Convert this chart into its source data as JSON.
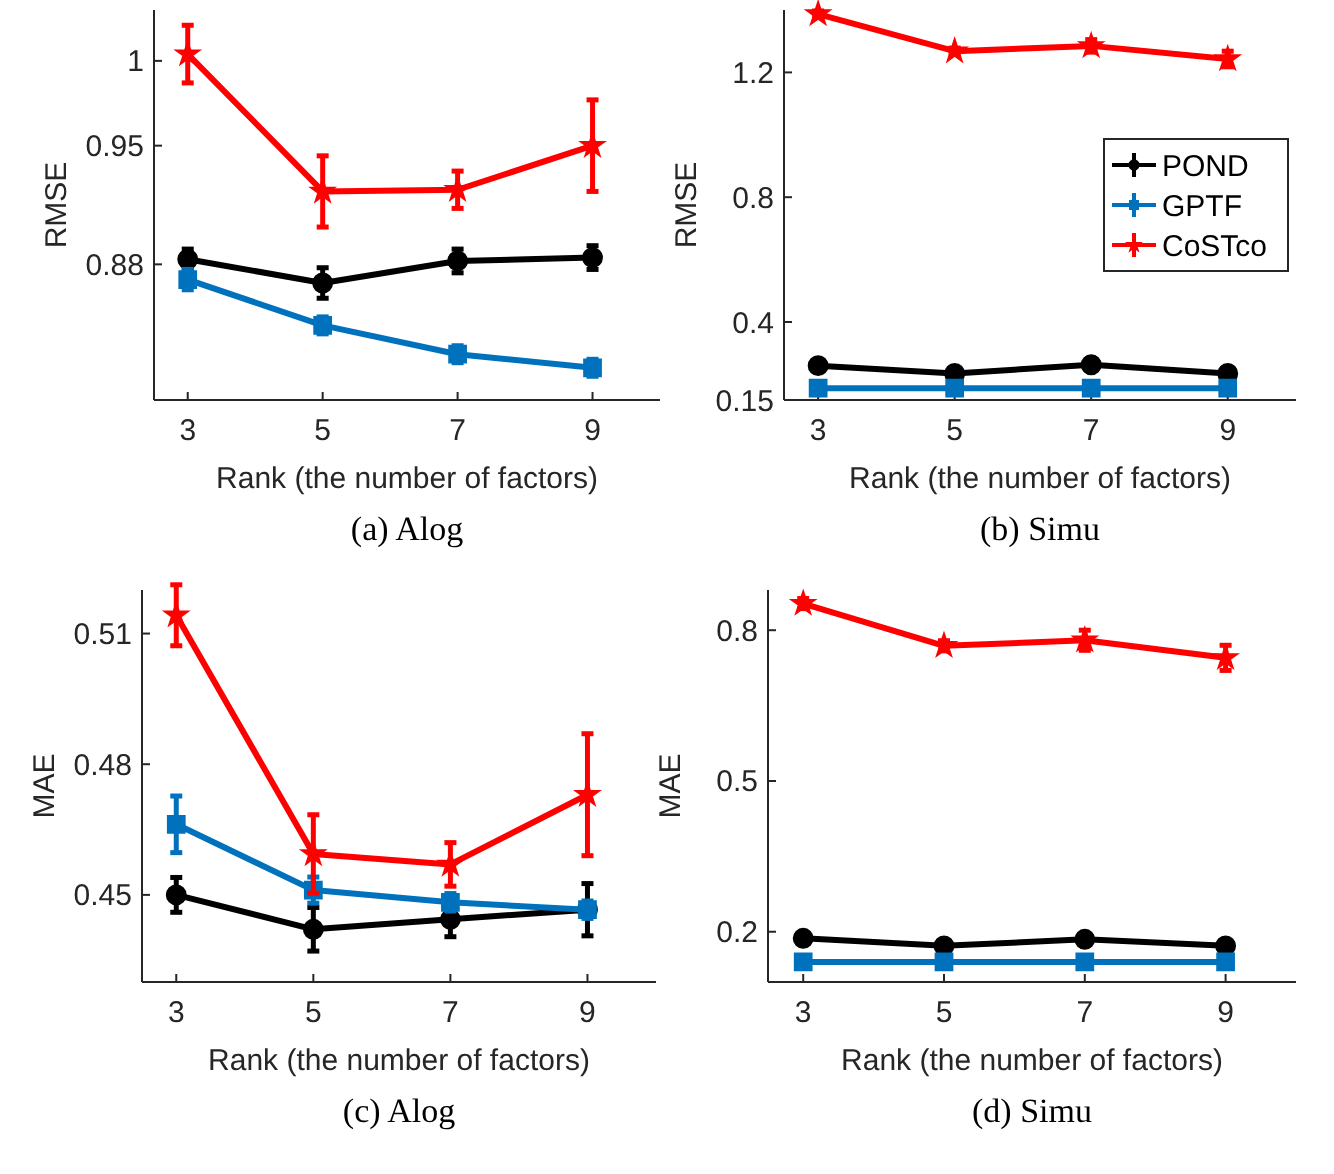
{
  "chart_data": [
    {
      "type": "line",
      "title": "(a) Alog",
      "xlabel": "Rank (the number of factors)",
      "ylabel": "RMSE",
      "x": [
        3,
        5,
        7,
        9
      ],
      "xlim": [
        2.5,
        10
      ],
      "xticks": [
        3,
        5,
        7,
        9
      ],
      "ylim": [
        0.8,
        1.03
      ],
      "yticks": [
        0.88,
        0.95,
        1
      ],
      "legend": false,
      "series": [
        {
          "color": "#000000",
          "marker": "circle",
          "values": [
            0.883,
            0.869,
            0.882,
            0.884
          ],
          "errors": [
            0.006,
            0.009,
            0.007,
            0.007
          ]
        },
        {
          "color": "#0072bd",
          "marker": "square",
          "values": [
            0.871,
            0.844,
            0.827,
            0.819
          ],
          "errors": [
            0.006,
            0.005,
            0.005,
            0.005
          ]
        },
        {
          "color": "#ff0000",
          "marker": "star",
          "values": [
            1.004,
            0.923,
            0.924,
            0.95
          ],
          "errors": [
            0.017,
            0.021,
            0.011,
            0.027
          ]
        }
      ]
    },
    {
      "type": "line",
      "title": "(b) Simu",
      "xlabel": "Rank (the number of factors)",
      "ylabel": "RMSE",
      "x": [
        3,
        5,
        7,
        9
      ],
      "xlim": [
        2.5,
        10
      ],
      "xticks": [
        3,
        5,
        7,
        9
      ],
      "ylim": [
        0.15,
        1.4
      ],
      "yticks": [
        0.15,
        0.4,
        0.8,
        1.2
      ],
      "legend": "right",
      "series": [
        {
          "name": "POND",
          "color": "#000000",
          "marker": "circle",
          "values": [
            0.26,
            0.235,
            0.263,
            0.235
          ],
          "errors": [
            0.005,
            0.005,
            0.005,
            0.005
          ]
        },
        {
          "name": "GPTF",
          "color": "#0072bd",
          "marker": "square",
          "values": [
            0.188,
            0.188,
            0.188,
            0.188
          ],
          "errors": [
            0.004,
            0.004,
            0.004,
            0.004
          ]
        },
        {
          "name": "CoSTco",
          "color": "#ff0000",
          "marker": "star",
          "values": [
            1.387,
            1.268,
            1.285,
            1.243
          ],
          "errors": [
            0.01,
            0.01,
            0.02,
            0.025
          ]
        }
      ]
    },
    {
      "type": "line",
      "title": "(c) Alog",
      "xlabel": "Rank (the number of factors)",
      "ylabel": "MAE",
      "x": [
        3,
        5,
        7,
        9
      ],
      "xlim": [
        2.5,
        10
      ],
      "xticks": [
        3,
        5,
        7,
        9
      ],
      "ylim": [
        0.43,
        0.52
      ],
      "yticks": [
        0.45,
        0.48,
        0.51
      ],
      "legend": false,
      "series": [
        {
          "color": "#000000",
          "marker": "circle",
          "values": [
            0.45,
            0.4421,
            0.4444,
            0.4466
          ],
          "errors": [
            0.004,
            0.005,
            0.004,
            0.006
          ]
        },
        {
          "color": "#0072bd",
          "marker": "square",
          "values": [
            0.4662,
            0.4511,
            0.4483,
            0.4466
          ],
          "errors": [
            0.0065,
            0.003,
            0.002,
            0.002
          ]
        },
        {
          "color": "#ff0000",
          "marker": "star",
          "values": [
            0.5142,
            0.4594,
            0.457,
            0.473
          ],
          "errors": [
            0.007,
            0.009,
            0.005,
            0.014
          ]
        }
      ]
    },
    {
      "type": "line",
      "title": "(d) Simu",
      "xlabel": "Rank (the number of factors)",
      "ylabel": "MAE",
      "x": [
        3,
        5,
        7,
        9
      ],
      "xlim": [
        2.5,
        10
      ],
      "xticks": [
        3,
        5,
        7,
        9
      ],
      "ylim": [
        0.1,
        0.88
      ],
      "yticks": [
        0.2,
        0.5,
        0.8
      ],
      "legend": false,
      "series": [
        {
          "color": "#000000",
          "marker": "circle",
          "values": [
            0.187,
            0.172,
            0.185,
            0.172
          ],
          "errors": [
            0.004,
            0.004,
            0.004,
            0.004
          ]
        },
        {
          "color": "#0072bd",
          "marker": "square",
          "values": [
            0.14,
            0.14,
            0.14,
            0.14
          ],
          "errors": [
            0.003,
            0.003,
            0.003,
            0.003
          ]
        },
        {
          "color": "#ff0000",
          "marker": "star",
          "values": [
            0.853,
            0.769,
            0.78,
            0.745
          ],
          "errors": [
            0.01,
            0.01,
            0.02,
            0.025
          ]
        }
      ]
    }
  ]
}
